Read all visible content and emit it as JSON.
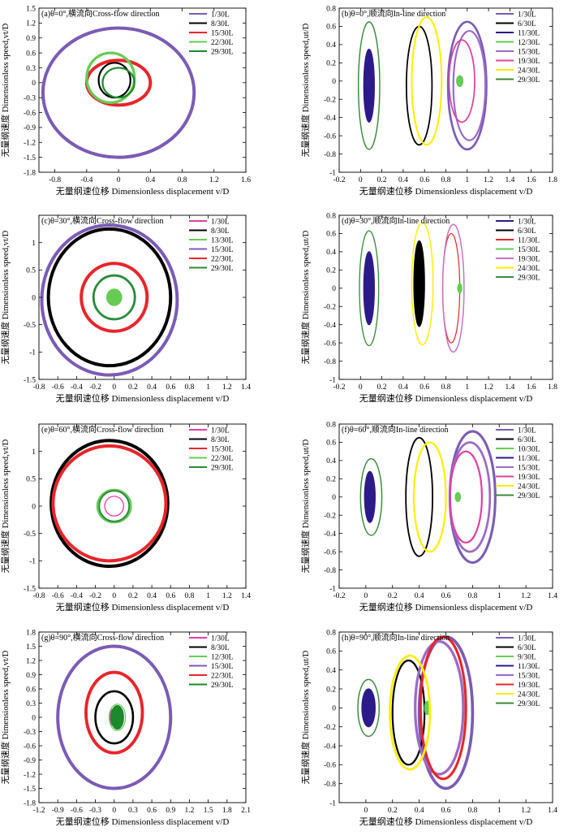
{
  "chart_data": [
    {
      "id": "a",
      "type": "line",
      "title": "(a)θ=0°,横流向Cross-flow direction",
      "xlabel": "无量纲速位移 Dimensionless displacement v/D",
      "ylabel": "无量纲速度 Dimensionless speed,vt/D",
      "xlim": [
        -1.0,
        1.6
      ],
      "ylim": [
        -1.8,
        1.5
      ],
      "xticks": [
        -0.8,
        -0.4,
        0.0,
        0.4,
        0.8,
        1.2,
        1.6
      ],
      "yticks": [
        -1.8,
        -1.5,
        -1.2,
        -0.9,
        -0.6,
        -0.3,
        0.0,
        0.3,
        0.6,
        0.9,
        1.2,
        1.5
      ],
      "legend_position": "top-right",
      "series": [
        {
          "name": "1/30L",
          "color": "#7b5bb6",
          "cx": 0.0,
          "cy": -0.2,
          "rx": 0.95,
          "ry": 1.3
        },
        {
          "name": "8/30L",
          "color": "#000000",
          "cx": -0.05,
          "cy": 0.05,
          "rx": 0.2,
          "ry": 0.35
        },
        {
          "name": "15/30L",
          "color": "#e8252a",
          "cx": 0.0,
          "cy": 0.0,
          "rx": 0.4,
          "ry": 0.45
        },
        {
          "name": "22/30L",
          "color": "#66cc55",
          "cx": -0.1,
          "cy": 0.1,
          "rx": 0.3,
          "ry": 0.5
        },
        {
          "name": "29/30L",
          "color": "#1a8a2a",
          "cx": 0.0,
          "cy": 0.0,
          "rx": 0.2,
          "ry": 0.3
        }
      ]
    },
    {
      "id": "b",
      "type": "line",
      "title": "(b)θ=0°,顺流向In-line direction",
      "xlabel": "无量纲速位移 Dimensionless displacement v/D",
      "ylabel": "无量纲速度 Dimensionless speed,ut/D",
      "xlim": [
        -0.2,
        1.8
      ],
      "ylim": [
        -1.0,
        0.8
      ],
      "xticks": [
        -0.2,
        0.0,
        0.2,
        0.4,
        0.6,
        0.8,
        1.0,
        1.2,
        1.4,
        1.6,
        1.8
      ],
      "yticks": [
        -1.0,
        -0.8,
        -0.6,
        -0.4,
        -0.2,
        0.0,
        0.2,
        0.4,
        0.6,
        0.8
      ],
      "legend_position": "top-right",
      "series": [
        {
          "name": "1/30L",
          "color": "#7b5bb6",
          "cx": 1.0,
          "cy": -0.05,
          "rx": 0.18,
          "ry": 0.7
        },
        {
          "name": "6/30L",
          "color": "#000000",
          "cx": 0.55,
          "cy": -0.05,
          "rx": 0.12,
          "ry": 0.65
        },
        {
          "name": "11/30L",
          "color": "#2d1a8a",
          "cx": 0.08,
          "cy": -0.05,
          "rx": 0.05,
          "ry": 0.4
        },
        {
          "name": "12/30L",
          "color": "#66cc55",
          "cx": 0.93,
          "cy": 0.0,
          "rx": 0.03,
          "ry": 0.06
        },
        {
          "name": "15/30L",
          "color": "#9b6bc6",
          "cx": 1.02,
          "cy": -0.05,
          "rx": 0.15,
          "ry": 0.6
        },
        {
          "name": "19/30L",
          "color": "#e040a0",
          "cx": 0.95,
          "cy": 0.0,
          "rx": 0.12,
          "ry": 0.45
        },
        {
          "name": "24/30L",
          "color": "#ffee00",
          "cx": 0.62,
          "cy": 0.0,
          "rx": 0.14,
          "ry": 0.7
        },
        {
          "name": "29/30L",
          "color": "#3a8a3a",
          "cx": 0.08,
          "cy": -0.05,
          "rx": 0.1,
          "ry": 0.7
        }
      ]
    },
    {
      "id": "c",
      "type": "line",
      "title": "(c)θ=30°,横流向Cross-flow direction",
      "xlabel": "无量纲速位移 Dimensionless displacement v/D",
      "ylabel": "无量纲速度 Dimensionless speed,vt/D",
      "xlim": [
        -0.8,
        1.4
      ],
      "ylim": [
        -1.5,
        1.5
      ],
      "xticks": [
        -0.8,
        -0.6,
        -0.4,
        -0.2,
        0.0,
        0.2,
        0.4,
        0.6,
        0.8,
        1.0,
        1.2,
        1.4
      ],
      "yticks": [
        -1.5,
        -1.0,
        -0.5,
        0.0,
        0.5,
        1.0
      ],
      "legend_position": "top-right",
      "series": [
        {
          "name": "1/30L",
          "color": "#e040a0",
          "cx": 0.0,
          "cy": 0.0,
          "rx": 0.07,
          "ry": 0.13
        },
        {
          "name": "8/30L",
          "color": "#000000",
          "cx": -0.05,
          "cy": 0.0,
          "rx": 0.65,
          "ry": 1.25
        },
        {
          "name": "13/30L",
          "color": "#66cc55",
          "cx": 0.0,
          "cy": 0.0,
          "rx": 0.08,
          "ry": 0.15
        },
        {
          "name": "15/30L",
          "color": "#7b5bb6",
          "cx": -0.05,
          "cy": -0.05,
          "rx": 0.72,
          "ry": 1.37
        },
        {
          "name": "22/30L",
          "color": "#e8252a",
          "cx": 0.0,
          "cy": 0.0,
          "rx": 0.35,
          "ry": 0.62
        },
        {
          "name": "29/30L",
          "color": "#2a8a3a",
          "cx": 0.0,
          "cy": 0.0,
          "rx": 0.22,
          "ry": 0.4
        }
      ]
    },
    {
      "id": "d",
      "type": "line",
      "title": "(d)θ=30°,顺流向In-line direction",
      "xlabel": "无量纲速位移 Dimensionless displacement v/D",
      "ylabel": "无量纲速度 Dimensionless speed,ut/D",
      "xlim": [
        -0.2,
        1.8
      ],
      "ylim": [
        -1.0,
        0.8
      ],
      "xticks": [
        -0.2,
        0.0,
        0.2,
        0.4,
        0.6,
        0.8,
        1.0,
        1.2,
        1.4,
        1.6,
        1.8
      ],
      "yticks": [
        -1.0,
        -0.8,
        -0.6,
        -0.4,
        -0.2,
        0.0,
        0.2,
        0.4,
        0.6,
        0.8
      ],
      "legend_position": "top-right",
      "series": [
        {
          "name": "1/30L",
          "color": "#2d1a8a",
          "cx": 0.08,
          "cy": 0.0,
          "rx": 0.05,
          "ry": 0.4
        },
        {
          "name": "6/30L",
          "color": "#000000",
          "cx": 0.55,
          "cy": 0.05,
          "rx": 0.05,
          "ry": 0.47
        },
        {
          "name": "11/30L",
          "color": "#e8252a",
          "cx": 0.85,
          "cy": 0.0,
          "rx": 0.08,
          "ry": 0.6
        },
        {
          "name": "15/30L",
          "color": "#66cc55",
          "cx": 0.93,
          "cy": 0.0,
          "rx": 0.02,
          "ry": 0.05
        },
        {
          "name": "19/30L",
          "color": "#c670c0",
          "cx": 0.87,
          "cy": 0.0,
          "rx": 0.1,
          "ry": 0.7
        },
        {
          "name": "24/30L",
          "color": "#ffee00",
          "cx": 0.58,
          "cy": 0.05,
          "rx": 0.1,
          "ry": 0.67
        },
        {
          "name": "29/30L",
          "color": "#3a8a3a",
          "cx": 0.08,
          "cy": 0.0,
          "rx": 0.09,
          "ry": 0.63
        }
      ]
    },
    {
      "id": "e",
      "type": "line",
      "title": "(e)θ=60°,横流向Cross-flow direction",
      "xlabel": "无量纲速位移 Dimensionless displacement v/D",
      "ylabel": "无量纲速度 Dimensionless speed,vt/D",
      "xlim": [
        -0.8,
        1.4
      ],
      "ylim": [
        -1.5,
        1.5
      ],
      "xticks": [
        -0.8,
        -0.6,
        -0.4,
        -0.2,
        0.0,
        0.2,
        0.4,
        0.6,
        0.8,
        1.0,
        1.2,
        1.4
      ],
      "yticks": [
        -1.5,
        -1.0,
        -0.5,
        0.0,
        0.5,
        1.0
      ],
      "legend_position": "top-right",
      "series": [
        {
          "name": "1/30L",
          "color": "#e040a0",
          "cx": 0.0,
          "cy": 0.0,
          "rx": 0.1,
          "ry": 0.18
        },
        {
          "name": "8/30L",
          "color": "#000000",
          "cx": -0.05,
          "cy": 0.05,
          "rx": 0.62,
          "ry": 1.15
        },
        {
          "name": "15/30L",
          "color": "#e8252a",
          "cx": -0.05,
          "cy": 0.05,
          "rx": 0.6,
          "ry": 1.05
        },
        {
          "name": "22/30L",
          "color": "#66cc55",
          "cx": 0.0,
          "cy": 0.0,
          "rx": 0.18,
          "ry": 0.3
        },
        {
          "name": "29/30L",
          "color": "#2a8a3a",
          "cx": 0.0,
          "cy": 0.0,
          "rx": 0.16,
          "ry": 0.28
        }
      ]
    },
    {
      "id": "f",
      "type": "line",
      "title": "(f)θ=60°,顺流向In-line direction",
      "xlabel": "无量纲速位移 Dimensionless displacement v/D",
      "ylabel": "无量纲速度 Dimensionless speed,ut/D",
      "xlim": [
        -0.2,
        1.4
      ],
      "ylim": [
        -1.0,
        0.8
      ],
      "xticks": [
        -0.2,
        0.0,
        0.2,
        0.4,
        0.6,
        0.8,
        1.0,
        1.2,
        1.4
      ],
      "yticks": [
        -1.0,
        -0.8,
        -0.6,
        -0.4,
        -0.2,
        0.0,
        0.2,
        0.4,
        0.6,
        0.8
      ],
      "legend_position": "top-right",
      "series": [
        {
          "name": "1/30L",
          "color": "#7b5bb6",
          "cx": 0.8,
          "cy": 0.0,
          "rx": 0.17,
          "ry": 0.72
        },
        {
          "name": "6/30L",
          "color": "#000000",
          "cx": 0.4,
          "cy": 0.0,
          "rx": 0.1,
          "ry": 0.65
        },
        {
          "name": "10/30L",
          "color": "#66cc55",
          "cx": 0.69,
          "cy": 0.0,
          "rx": 0.02,
          "ry": 0.05
        },
        {
          "name": "11/30L",
          "color": "#2d1a8a",
          "cx": 0.03,
          "cy": 0.0,
          "rx": 0.04,
          "ry": 0.28
        },
        {
          "name": "15/30L",
          "color": "#9b6bc6",
          "cx": 0.78,
          "cy": 0.0,
          "rx": 0.15,
          "ry": 0.6
        },
        {
          "name": "19/30L",
          "color": "#e040a0",
          "cx": 0.75,
          "cy": 0.0,
          "rx": 0.12,
          "ry": 0.5
        },
        {
          "name": "24/30L",
          "color": "#ffee00",
          "cx": 0.48,
          "cy": 0.0,
          "rx": 0.12,
          "ry": 0.6
        },
        {
          "name": "29/30L",
          "color": "#3a8a3a",
          "cx": 0.04,
          "cy": 0.0,
          "rx": 0.08,
          "ry": 0.42
        }
      ]
    },
    {
      "id": "g",
      "type": "line",
      "title": "(g)θ=90°,横流向Cross-flow direction",
      "xlabel": "无量纲速位移 Dimensionless displacement v/D",
      "ylabel": "无量纲速度 Dimensionless speed,vt/D",
      "xlim": [
        -1.2,
        2.1
      ],
      "ylim": [
        -1.8,
        1.8
      ],
      "xticks": [
        -1.2,
        -0.9,
        -0.6,
        -0.3,
        0.0,
        0.3,
        0.6,
        0.9,
        1.2,
        1.5,
        1.8,
        2.1
      ],
      "yticks": [
        -1.8,
        -1.5,
        -1.2,
        -0.9,
        -0.6,
        -0.3,
        0.0,
        0.3,
        0.6,
        0.9,
        1.2,
        1.5,
        1.8
      ],
      "legend_position": "top-right",
      "series": [
        {
          "name": "1/30L",
          "color": "#e040a0",
          "cx": 0.0,
          "cy": 0.0,
          "rx": 0.08,
          "ry": 0.18
        },
        {
          "name": "8/30L",
          "color": "#000000",
          "cx": 0.0,
          "cy": 0.0,
          "rx": 0.3,
          "ry": 0.55
        },
        {
          "name": "12/30L",
          "color": "#66cc55",
          "cx": 0.05,
          "cy": 0.0,
          "rx": 0.13,
          "ry": 0.28
        },
        {
          "name": "15/30L",
          "color": "#7b5bb6",
          "cx": 0.0,
          "cy": 0.0,
          "rx": 0.9,
          "ry": 1.5
        },
        {
          "name": "22/30L",
          "color": "#e8252a",
          "cx": 0.0,
          "cy": 0.1,
          "rx": 0.45,
          "ry": 0.85
        },
        {
          "name": "29/30L",
          "color": "#1a8a2a",
          "cx": 0.05,
          "cy": 0.0,
          "rx": 0.1,
          "ry": 0.25
        }
      ]
    },
    {
      "id": "h",
      "type": "line",
      "title": "(h)θ=90°,顺流向In-line direction",
      "xlabel": "无量纲速位移 Dimensionless displacement v/D",
      "ylabel": "无量纲速度 Dimensionless speed,ut/D",
      "xlim": [
        -0.2,
        1.4
      ],
      "ylim": [
        -1.0,
        0.8
      ],
      "xticks": [
        0.0,
        0.2,
        0.4,
        0.6,
        0.8,
        1.0,
        1.2,
        1.4
      ],
      "yticks": [
        -1.0,
        -0.8,
        -0.6,
        -0.4,
        -0.2,
        0.0,
        0.2,
        0.4,
        0.6,
        0.8
      ],
      "legend_position": "top-right",
      "series": [
        {
          "name": "1/30L",
          "color": "#7b5bb6",
          "cx": 0.6,
          "cy": -0.05,
          "rx": 0.2,
          "ry": 0.8
        },
        {
          "name": "6/30L",
          "color": "#000000",
          "cx": 0.32,
          "cy": -0.05,
          "rx": 0.12,
          "ry": 0.55
        },
        {
          "name": "9/30L",
          "color": "#66cc55",
          "cx": 0.46,
          "cy": 0.0,
          "rx": 0.02,
          "ry": 0.07
        },
        {
          "name": "11/30L",
          "color": "#2d1a8a",
          "cx": 0.02,
          "cy": 0.0,
          "rx": 0.05,
          "ry": 0.2
        },
        {
          "name": "15/30L",
          "color": "#9b6bc6",
          "cx": 0.55,
          "cy": 0.0,
          "rx": 0.18,
          "ry": 0.7
        },
        {
          "name": "19/30L",
          "color": "#e8252a",
          "cx": 0.58,
          "cy": 0.0,
          "rx": 0.17,
          "ry": 0.75
        },
        {
          "name": "24/30L",
          "color": "#ffee00",
          "cx": 0.33,
          "cy": -0.05,
          "rx": 0.15,
          "ry": 0.6
        },
        {
          "name": "29/30L",
          "color": "#3a8a3a",
          "cx": 0.02,
          "cy": 0.0,
          "rx": 0.08,
          "ry": 0.3
        }
      ]
    }
  ]
}
